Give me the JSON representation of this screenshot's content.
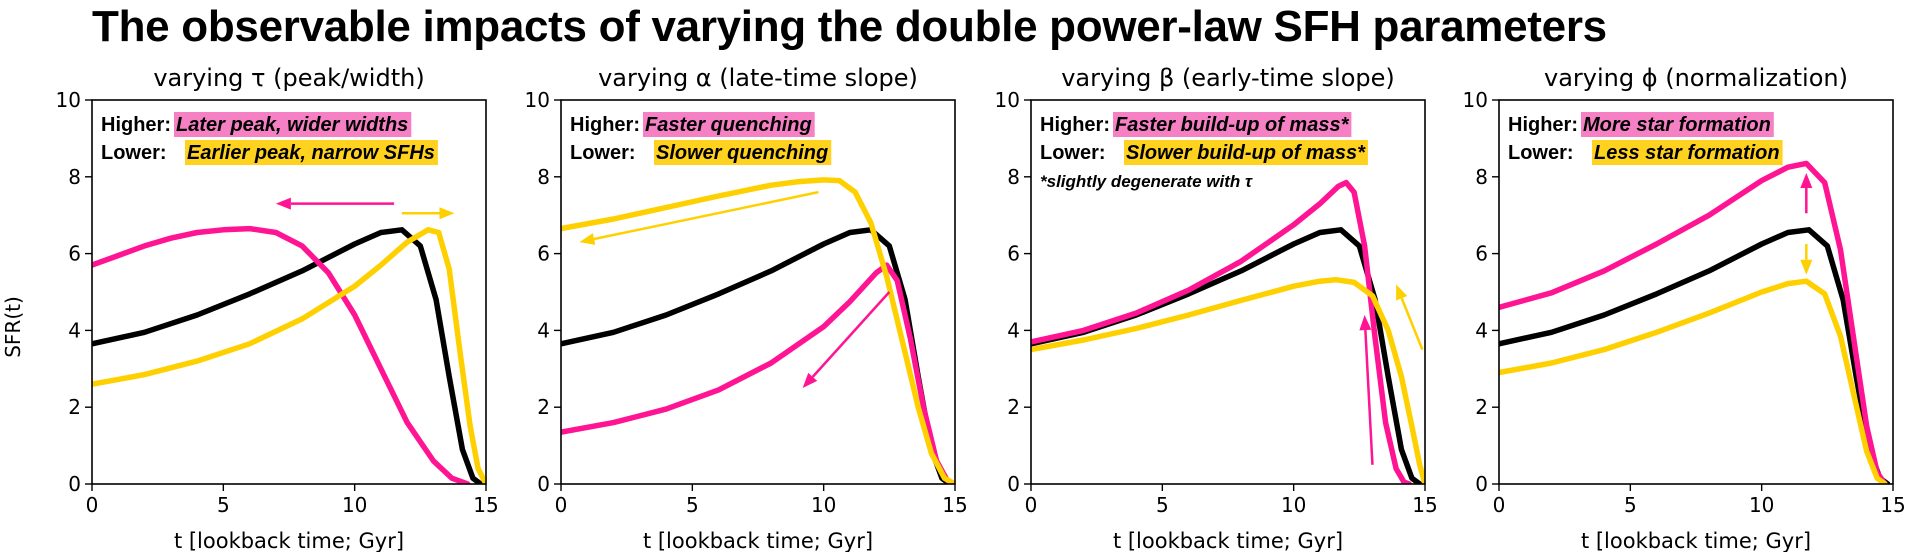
{
  "figure": {
    "title": "The observable impacts of varying the double power-law SFH parameters",
    "ylabel": "SFR(t)"
  },
  "colors": {
    "base": "#000000",
    "higher": "#ff1493",
    "lower": "#ffd000",
    "higher_highlight": "#f580c4",
    "lower_highlight": "#ffd21f"
  },
  "chart_data": [
    {
      "type": "line",
      "title": "varying τ (peak/width)",
      "xlabel": "t [lookback time; Gyr]",
      "ylabel": "SFR(t)",
      "xlim": [
        0,
        15
      ],
      "ylim": [
        0,
        10
      ],
      "xticks": [
        0,
        5,
        10,
        15
      ],
      "yticks": [
        0,
        2,
        4,
        6,
        8,
        10
      ],
      "legend": [
        {
          "label": "Higher:",
          "text": "Later peak, wider widths",
          "color": "#f580c4"
        },
        {
          "label": "Lower:",
          "text": "Earlier peak, narrow SFHs",
          "color": "#ffd21f"
        }
      ],
      "note": "",
      "series": [
        {
          "name": "baseline",
          "color": "#000000",
          "points": [
            [
              0,
              3.65
            ],
            [
              2,
              3.95
            ],
            [
              4,
              4.4
            ],
            [
              6,
              4.95
            ],
            [
              8,
              5.55
            ],
            [
              10,
              6.25
            ],
            [
              11,
              6.55
            ],
            [
              11.8,
              6.62
            ],
            [
              12.5,
              6.2
            ],
            [
              13.1,
              4.8
            ],
            [
              13.6,
              2.8
            ],
            [
              14.1,
              0.9
            ],
            [
              14.5,
              0.15
            ],
            [
              14.8,
              0
            ]
          ]
        },
        {
          "name": "higher",
          "color": "#ff1493",
          "points": [
            [
              0,
              5.7
            ],
            [
              1,
              5.95
            ],
            [
              2,
              6.2
            ],
            [
              3,
              6.4
            ],
            [
              4,
              6.55
            ],
            [
              5,
              6.62
            ],
            [
              6,
              6.65
            ],
            [
              7,
              6.55
            ],
            [
              8,
              6.2
            ],
            [
              9,
              5.5
            ],
            [
              10,
              4.4
            ],
            [
              11,
              3.0
            ],
            [
              12,
              1.6
            ],
            [
              13,
              0.6
            ],
            [
              13.7,
              0.15
            ],
            [
              14.3,
              0
            ]
          ]
        },
        {
          "name": "lower",
          "color": "#ffd000",
          "points": [
            [
              0,
              2.6
            ],
            [
              2,
              2.85
            ],
            [
              4,
              3.2
            ],
            [
              6,
              3.65
            ],
            [
              8,
              4.3
            ],
            [
              10,
              5.15
            ],
            [
              11,
              5.7
            ],
            [
              12,
              6.3
            ],
            [
              12.8,
              6.62
            ],
            [
              13.2,
              6.55
            ],
            [
              13.6,
              5.6
            ],
            [
              14.0,
              3.5
            ],
            [
              14.4,
              1.5
            ],
            [
              14.7,
              0.4
            ],
            [
              15,
              0
            ]
          ]
        }
      ],
      "arrows": [
        {
          "color": "#ff1493",
          "from": [
            11.5,
            7.3
          ],
          "to": [
            7.0,
            7.3
          ]
        },
        {
          "color": "#ffd000",
          "from": [
            11.8,
            7.05
          ],
          "to": [
            13.8,
            7.05
          ]
        }
      ]
    },
    {
      "type": "line",
      "title": "varying α (late-time slope)",
      "xlabel": "t [lookback time; Gyr]",
      "ylabel": "",
      "xlim": [
        0,
        15
      ],
      "ylim": [
        0,
        10
      ],
      "xticks": [
        0,
        5,
        10,
        15
      ],
      "yticks": [
        0,
        2,
        4,
        6,
        8,
        10
      ],
      "legend": [
        {
          "label": "Higher:",
          "text": "Faster quenching",
          "color": "#f580c4"
        },
        {
          "label": "Lower:",
          "text": "Slower quenching",
          "color": "#ffd21f"
        }
      ],
      "note": "",
      "series": [
        {
          "name": "baseline",
          "color": "#000000",
          "points": [
            [
              0,
              3.65
            ],
            [
              2,
              3.95
            ],
            [
              4,
              4.4
            ],
            [
              6,
              4.95
            ],
            [
              8,
              5.55
            ],
            [
              10,
              6.25
            ],
            [
              11,
              6.55
            ],
            [
              11.8,
              6.62
            ],
            [
              12.5,
              6.2
            ],
            [
              13.1,
              4.8
            ],
            [
              13.6,
              2.8
            ],
            [
              14.1,
              0.9
            ],
            [
              14.5,
              0.15
            ],
            [
              14.8,
              0
            ]
          ]
        },
        {
          "name": "higher",
          "color": "#ff1493",
          "points": [
            [
              0,
              1.35
            ],
            [
              2,
              1.6
            ],
            [
              4,
              1.95
            ],
            [
              6,
              2.45
            ],
            [
              8,
              3.15
            ],
            [
              10,
              4.1
            ],
            [
              11,
              4.75
            ],
            [
              12,
              5.5
            ],
            [
              12.4,
              5.7
            ],
            [
              12.8,
              5.3
            ],
            [
              13.3,
              3.8
            ],
            [
              13.8,
              2.0
            ],
            [
              14.3,
              0.6
            ],
            [
              14.7,
              0.1
            ],
            [
              15,
              0
            ]
          ]
        },
        {
          "name": "lower",
          "color": "#ffd000",
          "points": [
            [
              0,
              6.65
            ],
            [
              2,
              6.9
            ],
            [
              4,
              7.2
            ],
            [
              6,
              7.5
            ],
            [
              8,
              7.78
            ],
            [
              9,
              7.87
            ],
            [
              10,
              7.92
            ],
            [
              10.6,
              7.9
            ],
            [
              11.2,
              7.6
            ],
            [
              11.8,
              6.8
            ],
            [
              12.4,
              5.4
            ],
            [
              13.0,
              3.7
            ],
            [
              13.6,
              2.0
            ],
            [
              14.1,
              0.8
            ],
            [
              14.6,
              0.15
            ],
            [
              15,
              0
            ]
          ]
        }
      ],
      "arrows": [
        {
          "color": "#ff1493",
          "from": [
            12.5,
            5.0
          ],
          "to": [
            9.2,
            2.5
          ]
        },
        {
          "color": "#ffd000",
          "from": [
            9.8,
            7.6
          ],
          "to": [
            0.7,
            6.3
          ]
        }
      ]
    },
    {
      "type": "line",
      "title": "varying β (early-time slope)",
      "xlabel": "t [lookback time; Gyr]",
      "ylabel": "",
      "xlim": [
        0,
        15
      ],
      "ylim": [
        0,
        10
      ],
      "xticks": [
        0,
        5,
        10,
        15
      ],
      "yticks": [
        0,
        2,
        4,
        6,
        8,
        10
      ],
      "legend": [
        {
          "label": "Higher:",
          "text": "Faster build-up of mass*",
          "color": "#f580c4"
        },
        {
          "label": "Lower:",
          "text": "Slower build-up of mass*",
          "color": "#ffd21f"
        }
      ],
      "note": "*slightly degenerate with τ",
      "series": [
        {
          "name": "baseline",
          "color": "#000000",
          "points": [
            [
              0,
              3.65
            ],
            [
              2,
              3.95
            ],
            [
              4,
              4.4
            ],
            [
              6,
              4.95
            ],
            [
              8,
              5.55
            ],
            [
              10,
              6.25
            ],
            [
              11,
              6.55
            ],
            [
              11.8,
              6.62
            ],
            [
              12.5,
              6.2
            ],
            [
              13.1,
              4.8
            ],
            [
              13.6,
              2.8
            ],
            [
              14.1,
              0.9
            ],
            [
              14.5,
              0.15
            ],
            [
              14.8,
              0
            ]
          ]
        },
        {
          "name": "higher",
          "color": "#ff1493",
          "points": [
            [
              0,
              3.7
            ],
            [
              2,
              4.0
            ],
            [
              4,
              4.45
            ],
            [
              6,
              5.05
            ],
            [
              8,
              5.8
            ],
            [
              10,
              6.75
            ],
            [
              11,
              7.3
            ],
            [
              11.7,
              7.75
            ],
            [
              12.0,
              7.85
            ],
            [
              12.3,
              7.6
            ],
            [
              12.7,
              6.2
            ],
            [
              13.1,
              3.8
            ],
            [
              13.5,
              1.6
            ],
            [
              13.9,
              0.4
            ],
            [
              14.2,
              0.05
            ],
            [
              14.4,
              0
            ]
          ]
        },
        {
          "name": "lower",
          "color": "#ffd000",
          "points": [
            [
              0,
              3.5
            ],
            [
              2,
              3.75
            ],
            [
              4,
              4.05
            ],
            [
              6,
              4.4
            ],
            [
              8,
              4.78
            ],
            [
              10,
              5.15
            ],
            [
              11,
              5.28
            ],
            [
              11.6,
              5.32
            ],
            [
              12.3,
              5.25
            ],
            [
              13.0,
              4.9
            ],
            [
              13.6,
              4.0
            ],
            [
              14.1,
              2.8
            ],
            [
              14.5,
              1.5
            ],
            [
              14.8,
              0.5
            ],
            [
              15,
              0
            ]
          ]
        }
      ],
      "arrows": [
        {
          "color": "#ff1493",
          "from": [
            13.0,
            0.5
          ],
          "to": [
            12.7,
            4.4
          ]
        },
        {
          "color": "#ffd000",
          "from": [
            14.9,
            3.5
          ],
          "to": [
            13.9,
            5.2
          ]
        }
      ]
    },
    {
      "type": "line",
      "title": "varying ϕ (normalization)",
      "xlabel": "t [lookback time; Gyr]",
      "ylabel": "",
      "xlim": [
        0,
        15
      ],
      "ylim": [
        0,
        10
      ],
      "xticks": [
        0,
        5,
        10,
        15
      ],
      "yticks": [
        0,
        2,
        4,
        6,
        8,
        10
      ],
      "legend": [
        {
          "label": "Higher:",
          "text": "More star formation",
          "color": "#f580c4"
        },
        {
          "label": "Lower:",
          "text": "Less star formation",
          "color": "#ffd21f"
        }
      ],
      "note": "",
      "series": [
        {
          "name": "baseline",
          "color": "#000000",
          "points": [
            [
              0,
              3.65
            ],
            [
              2,
              3.95
            ],
            [
              4,
              4.4
            ],
            [
              6,
              4.95
            ],
            [
              8,
              5.55
            ],
            [
              10,
              6.25
            ],
            [
              11,
              6.55
            ],
            [
              11.8,
              6.62
            ],
            [
              12.5,
              6.2
            ],
            [
              13.1,
              4.8
            ],
            [
              13.6,
              2.8
            ],
            [
              14.1,
              0.9
            ],
            [
              14.5,
              0.15
            ],
            [
              14.8,
              0
            ]
          ]
        },
        {
          "name": "higher",
          "color": "#ff1493",
          "points": [
            [
              0,
              4.6
            ],
            [
              2,
              4.98
            ],
            [
              4,
              5.55
            ],
            [
              6,
              6.25
            ],
            [
              8,
              7.0
            ],
            [
              10,
              7.9
            ],
            [
              11,
              8.25
            ],
            [
              11.7,
              8.35
            ],
            [
              12.4,
              7.85
            ],
            [
              13.0,
              6.1
            ],
            [
              13.5,
              3.8
            ],
            [
              14.0,
              1.5
            ],
            [
              14.4,
              0.3
            ],
            [
              14.7,
              0
            ]
          ]
        },
        {
          "name": "lower",
          "color": "#ffd000",
          "points": [
            [
              0,
              2.9
            ],
            [
              2,
              3.15
            ],
            [
              4,
              3.5
            ],
            [
              6,
              3.95
            ],
            [
              8,
              4.45
            ],
            [
              10,
              5.0
            ],
            [
              11,
              5.22
            ],
            [
              11.7,
              5.28
            ],
            [
              12.4,
              4.95
            ],
            [
              13.0,
              3.85
            ],
            [
              13.5,
              2.35
            ],
            [
              14.0,
              0.85
            ],
            [
              14.4,
              0.15
            ],
            [
              14.7,
              0
            ]
          ]
        }
      ],
      "arrows": [
        {
          "color": "#ff1493",
          "from": [
            11.7,
            7.05
          ],
          "to": [
            11.7,
            8.1
          ]
        },
        {
          "color": "#ffd000",
          "from": [
            11.7,
            6.25
          ],
          "to": [
            11.7,
            5.45
          ]
        }
      ]
    }
  ]
}
